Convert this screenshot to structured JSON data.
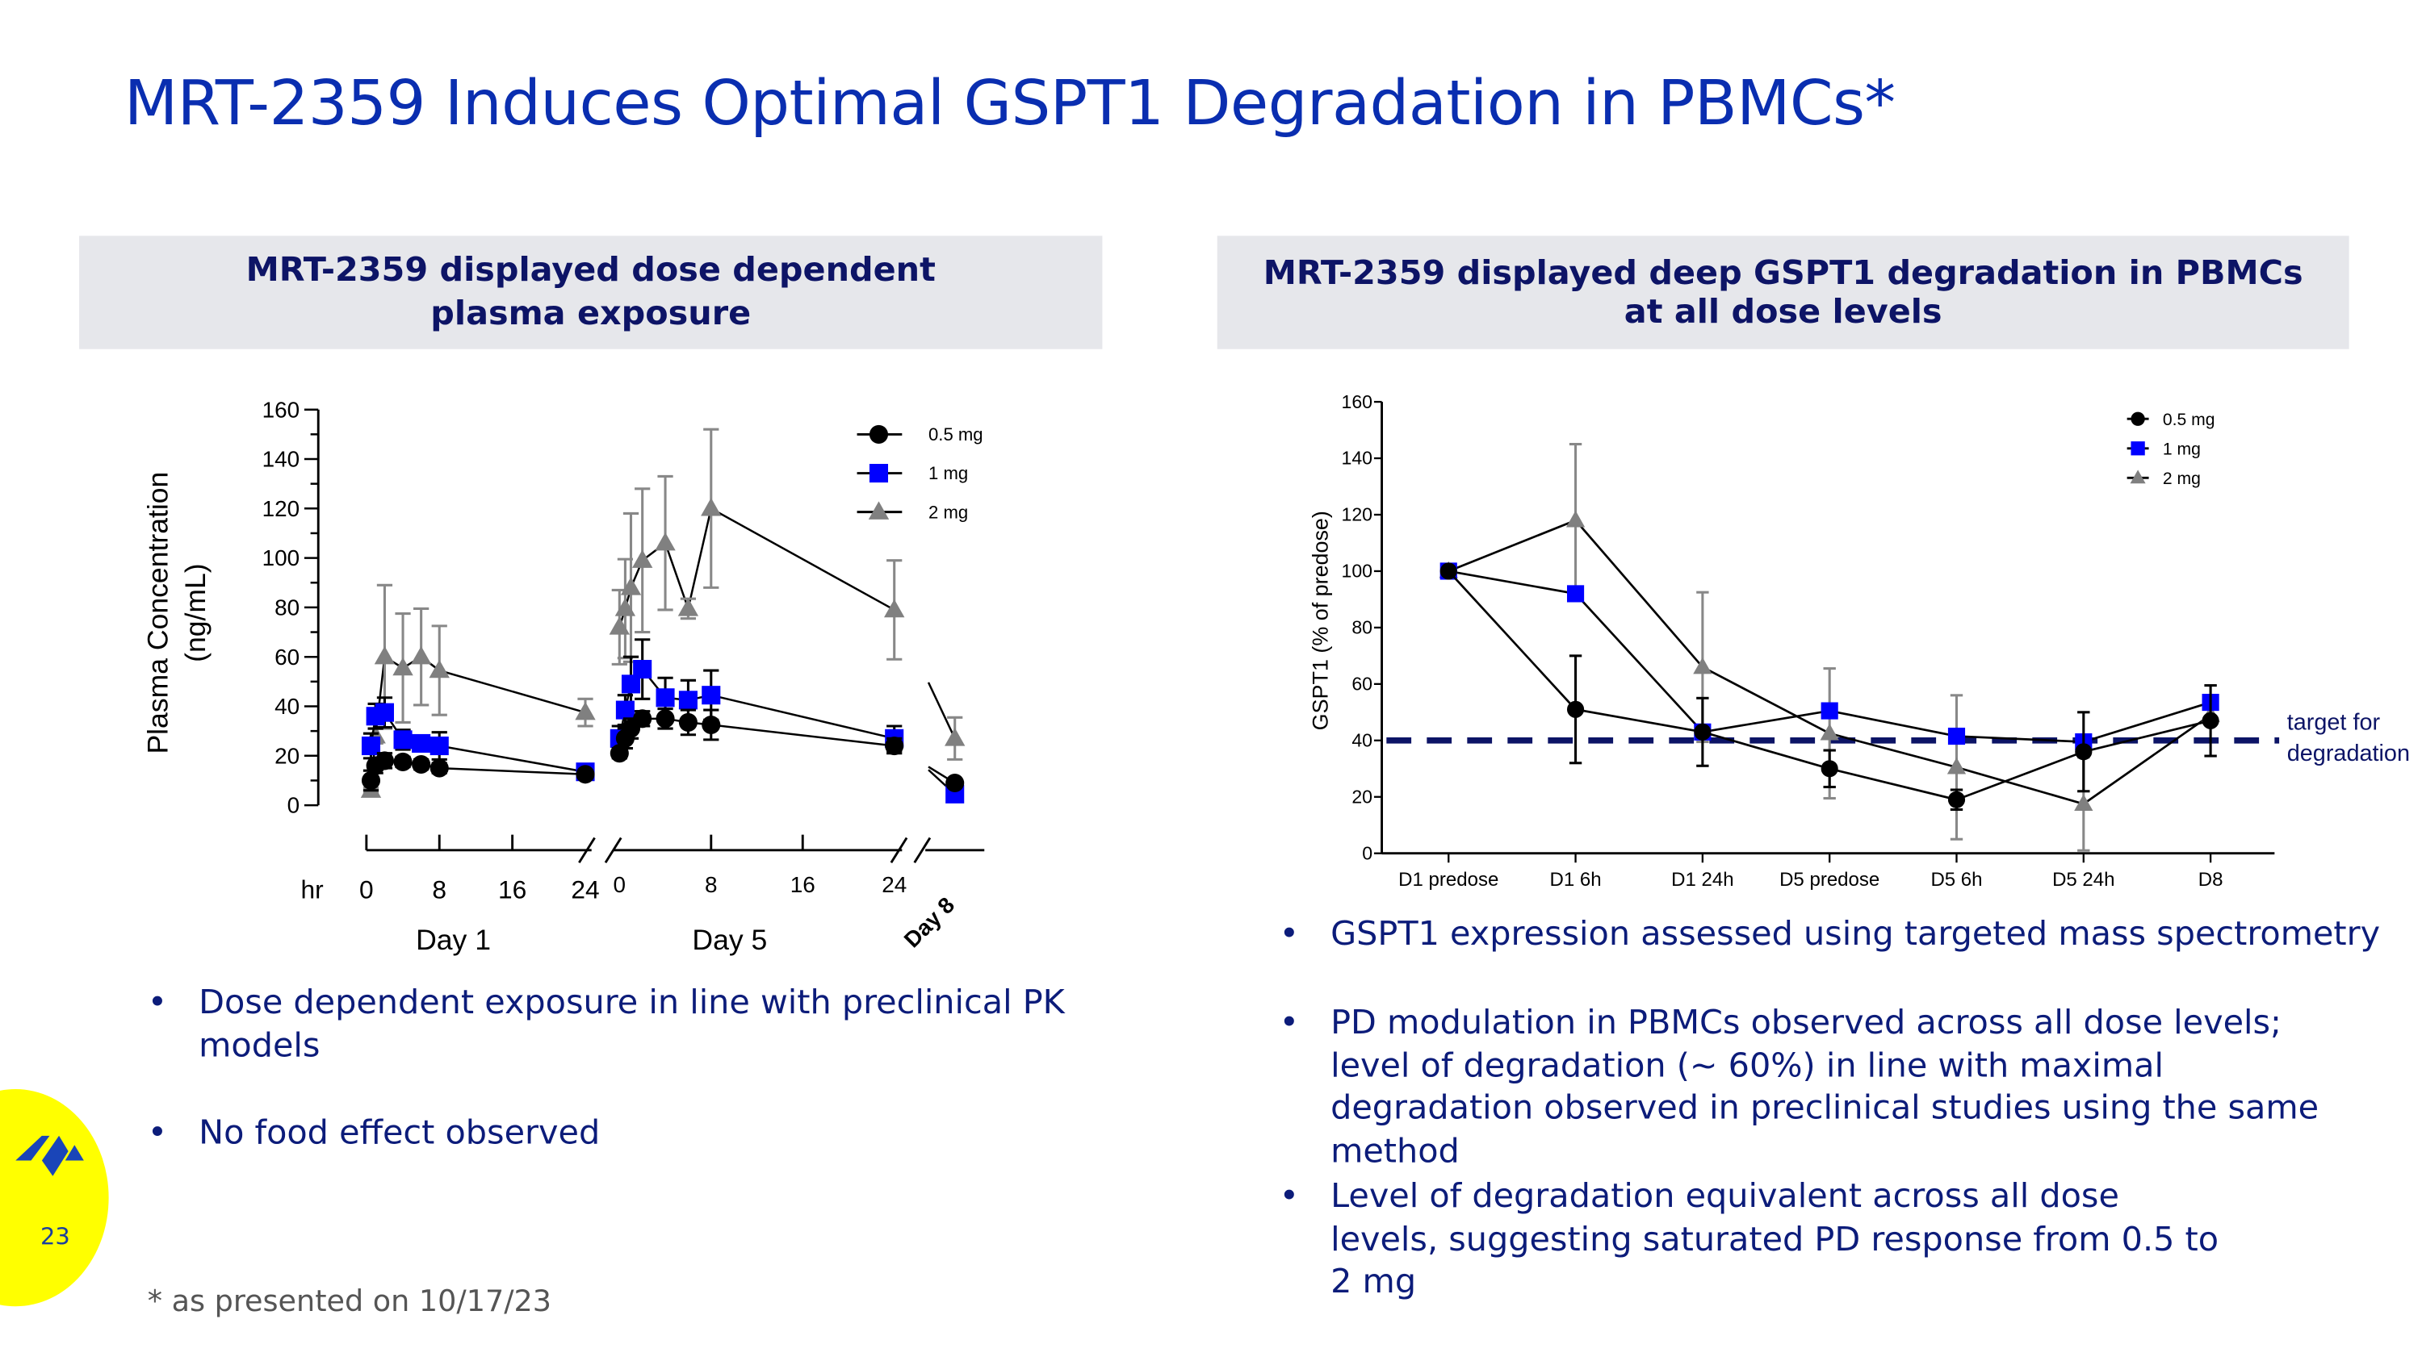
{
  "title": "MRT-2359 Induces Optimal GSPT1 Degradation in PBMCs*",
  "left_panel": {
    "header_lines": [
      "MRT-2359 displayed dose dependent",
      "plasma exposure"
    ],
    "bullets": [
      "Dose dependent exposure in line with preclinical PK models",
      "No food effect observed"
    ]
  },
  "right_panel": {
    "header_lines": [
      "MRT-2359 displayed deep GSPT1 degradation in PBMCs",
      "at all dose levels"
    ],
    "bullets": [
      "GSPT1 expression assessed using targeted mass spectrometry",
      "PD modulation in PBMCs observed across all dose levels; level of degradation (~ 60%) in line with maximal degradation observed in preclinical studies using the same method",
      "Level of degradation equivalent across all dose levels, suggesting saturated PD response from 0.5 to 2 mg"
    ]
  },
  "bullet_glyph": "•",
  "footnote": "* as presented on 10/17/23",
  "page_number": "23",
  "logo": {
    "brand_color": "#1a45b8",
    "badge_color": "#ffff00"
  },
  "chart_data": [
    {
      "type": "line",
      "ylabel": [
        "Plasma Concentration",
        "(ng/mL)"
      ],
      "ylim": [
        0,
        160
      ],
      "yticks": [
        0,
        20,
        40,
        60,
        80,
        100,
        120,
        140,
        160
      ],
      "x_unit_label": "hr",
      "x_groups": [
        {
          "label": "Day 1",
          "ticks": [
            "0",
            "8",
            "16",
            "24"
          ],
          "range_hr": [
            0,
            24
          ]
        },
        {
          "label": "Day 5",
          "ticks": [
            "0",
            "8",
            "16",
            "24"
          ],
          "range_hr": [
            0,
            24
          ]
        },
        {
          "label": "Day 8",
          "ticks": []
        }
      ],
      "legend_position": "top-right",
      "series": [
        {
          "name": "0.5 mg",
          "marker": "circle",
          "color": "#000000",
          "error_color": "#000000",
          "day1": [
            [
              0.5,
              10,
              4
            ],
            [
              1,
              16,
              3
            ],
            [
              2,
              18,
              3
            ],
            [
              4,
              17.5,
              2
            ],
            [
              6,
              16.5,
              2
            ],
            [
              8,
              15,
              2
            ],
            [
              24,
              12.5,
              1
            ]
          ],
          "day5": [
            [
              0,
              21,
              2
            ],
            [
              0.5,
              27,
              4
            ],
            [
              1,
              31,
              4
            ],
            [
              2,
              35,
              3
            ],
            [
              4,
              35,
              4
            ],
            [
              6,
              33.5,
              5
            ],
            [
              8,
              32.5,
              6
            ],
            [
              24,
              24,
              3
            ]
          ],
          "day8": [
            9,
            1
          ]
        },
        {
          "name": "1 mg",
          "marker": "square",
          "color": "#0000ff",
          "error_color": "#000000",
          "day1": [
            [
              0.5,
              24,
              5
            ],
            [
              1,
              36,
              5
            ],
            [
              2,
              37.5,
              6
            ],
            [
              4,
              26.5,
              4
            ],
            [
              6,
              25,
              3
            ],
            [
              8,
              24,
              5.5
            ],
            [
              24,
              13.5,
              1
            ]
          ],
          "day5": [
            [
              0,
              27,
              5
            ],
            [
              0.5,
              38.5,
              6
            ],
            [
              1,
              49,
              11
            ],
            [
              2,
              55,
              12
            ],
            [
              4,
              43.5,
              8
            ],
            [
              6,
              42.5,
              8
            ],
            [
              8,
              44.5,
              10
            ],
            [
              24,
              27,
              5
            ]
          ],
          "day8": [
            4.5,
            1
          ]
        },
        {
          "name": "2 mg",
          "marker": "triangle",
          "color": "#808080",
          "error_color": "#888888",
          "day1": [
            [
              0.5,
              6,
              1
            ],
            [
              1,
              28,
              3
            ],
            [
              2,
              60,
              29
            ],
            [
              4,
              55.5,
              22
            ],
            [
              6,
              60,
              19.5
            ],
            [
              8,
              54.5,
              18
            ],
            [
              24,
              37.5,
              5.5
            ]
          ],
          "day5": [
            [
              0,
              72,
              15
            ],
            [
              0.5,
              79.5,
              20
            ],
            [
              1,
              88,
              30
            ],
            [
              2,
              99,
              29
            ],
            [
              4,
              106,
              27
            ],
            [
              6,
              79.5,
              4
            ],
            [
              8,
              120,
              32
            ],
            [
              24,
              79,
              20
            ]
          ],
          "day8": [
            27,
            8.5
          ]
        }
      ]
    },
    {
      "type": "line",
      "ylabel": "GSPT1 (% of predose)",
      "ylim": [
        0,
        160
      ],
      "yticks": [
        0,
        20,
        40,
        60,
        80,
        100,
        120,
        140,
        160
      ],
      "categories": [
        "D1 predose",
        "D1 6h",
        "D1 24h",
        "D5 predose",
        "D5 6h",
        "D5 24h",
        "D8"
      ],
      "legend_position": "top-right",
      "reference_line": {
        "value": 40,
        "label_lines": [
          "target for",
          "degradation"
        ],
        "color": "#0c1466",
        "style": "dashed"
      },
      "series": [
        {
          "name": "0.5 mg",
          "marker": "circle",
          "color": "#000000",
          "error_color": "#000000",
          "values": [
            100,
            51,
            43,
            30,
            19,
            36,
            47
          ],
          "errors": [
            0,
            19,
            12,
            6.5,
            3.5,
            14,
            12.5
          ]
        },
        {
          "name": "1 mg",
          "marker": "square",
          "color": "#0000ff",
          "error_color": "#000000",
          "values": [
            100,
            92,
            43,
            50.5,
            41.5,
            39.5,
            53.5
          ],
          "errors": [
            0,
            0,
            0,
            0,
            0,
            0,
            0
          ]
        },
        {
          "name": "2 mg",
          "marker": "triangle",
          "color": "#808080",
          "error_color": "#888888",
          "values": [
            100,
            118,
            66,
            42.5,
            30.5,
            17.5,
            49
          ],
          "errors": [
            0,
            27,
            26.5,
            23,
            25.5,
            16.5,
            0
          ]
        }
      ]
    }
  ]
}
